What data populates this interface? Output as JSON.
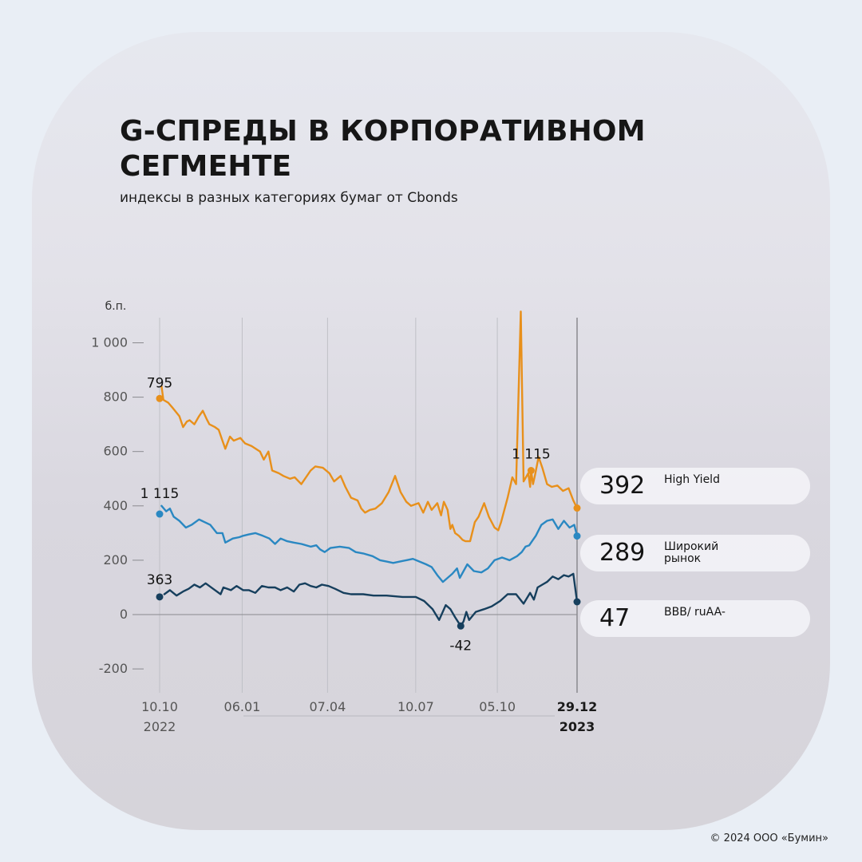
{
  "title": "G-СПРЕДЫ В КОРПОРАТИВНОМ СЕГМЕНТЕ",
  "subtitle": "индексы в разных категориях бумаг от Cbonds",
  "copyright": "© 2024 ООО «Бумин»",
  "colors": {
    "high_yield": "#e8901b",
    "broad_market": "#2a88c2",
    "bbb": "#163f5d",
    "axis": "#5a5a5a",
    "grid": "#bfc0c6"
  },
  "chart_data": {
    "type": "line",
    "title": "G-СПРЕДЫ В КОРПОРАТИВНОМ СЕГМЕНТЕ",
    "subtitle": "индексы в разных категориях бумаг от Cbonds",
    "ylabel": "б.п.",
    "ylim": [
      -200,
      1100
    ],
    "yticks": [
      1000,
      800,
      600,
      400,
      200,
      0,
      -200
    ],
    "ytick_labels": [
      "1 000",
      "800",
      "600",
      "400",
      "200",
      "0",
      "-200"
    ],
    "xticks": [
      {
        "x": "2022-10-10",
        "label": "10.10",
        "sub": "2022"
      },
      {
        "x": "2023-01-06",
        "label": "06.01",
        "sub": ""
      },
      {
        "x": "2023-04-07",
        "label": "07.04",
        "sub": ""
      },
      {
        "x": "2023-07-10",
        "label": "10.07",
        "sub": ""
      },
      {
        "x": "2023-10-05",
        "label": "05.10",
        "sub": ""
      },
      {
        "x": "2023-12-29",
        "label": "29.12",
        "sub": "2023"
      }
    ],
    "series": [
      {
        "name": "High Yield",
        "key": "high_yield",
        "x": [
          "2022-10-10",
          "2022-10-12",
          "2022-10-14",
          "2022-10-19",
          "2022-10-24",
          "2022-10-31",
          "2022-11-04",
          "2022-11-08",
          "2022-11-11",
          "2022-11-16",
          "2022-11-21",
          "2022-11-25",
          "2022-11-29",
          "2022-12-02",
          "2022-12-08",
          "2022-12-12",
          "2022-12-16",
          "2022-12-19",
          "2022-12-24",
          "2022-12-28",
          "2023-01-04",
          "2023-01-09",
          "2023-01-16",
          "2023-01-25",
          "2023-01-29",
          "2023-02-03",
          "2023-02-07",
          "2023-02-14",
          "2023-02-19",
          "2023-02-26",
          "2023-03-03",
          "2023-03-10",
          "2023-03-20",
          "2023-03-25",
          "2023-04-02",
          "2023-04-09",
          "2023-04-14",
          "2023-04-21",
          "2023-04-26",
          "2023-05-02",
          "2023-05-09",
          "2023-05-13",
          "2023-05-17",
          "2023-05-22",
          "2023-05-28",
          "2023-06-04",
          "2023-06-11",
          "2023-06-18",
          "2023-06-24",
          "2023-06-30",
          "2023-07-05",
          "2023-07-13",
          "2023-07-18",
          "2023-07-23",
          "2023-07-27",
          "2023-08-02",
          "2023-08-06",
          "2023-08-09",
          "2023-08-11",
          "2023-08-13",
          "2023-08-16",
          "2023-08-18",
          "2023-08-21",
          "2023-08-25",
          "2023-08-29",
          "2023-09-01",
          "2023-09-06",
          "2023-09-11",
          "2023-09-15",
          "2023-09-21",
          "2023-09-26",
          "2023-10-02",
          "2023-10-06",
          "2023-10-09",
          "2023-10-16",
          "2023-10-21",
          "2023-10-25",
          "2023-10-30",
          "2023-11-02",
          "2023-11-07",
          "2023-11-09",
          "2023-11-10",
          "2023-11-12",
          "2023-11-14",
          "2023-11-18",
          "2023-11-22",
          "2023-11-27",
          "2023-12-02",
          "2023-12-08",
          "2023-12-14",
          "2023-12-20",
          "2023-12-25",
          "2023-12-29"
        ],
        "y": [
          795,
          840,
          790,
          780,
          760,
          730,
          690,
          710,
          715,
          700,
          730,
          750,
          720,
          700,
          690,
          680,
          640,
          610,
          655,
          640,
          650,
          630,
          620,
          600,
          570,
          600,
          530,
          520,
          510,
          500,
          505,
          480,
          530,
          545,
          540,
          520,
          490,
          510,
          470,
          430,
          420,
          390,
          375,
          385,
          390,
          410,
          450,
          510,
          450,
          415,
          400,
          410,
          375,
          415,
          385,
          410,
          365,
          415,
          400,
          385,
          315,
          330,
          300,
          290,
          275,
          270,
          270,
          340,
          360,
          410,
          360,
          320,
          310,
          340,
          430,
          505,
          480,
          1115,
          490,
          520,
          470,
          530,
          480,
          510,
          580,
          540,
          480,
          470,
          475,
          455,
          465,
          420,
          392
        ]
      },
      {
        "name": "Широкий рынок",
        "key": "broad_market",
        "x": [
          "2022-10-10",
          "2022-10-12",
          "2022-10-17",
          "2022-10-21",
          "2022-10-25",
          "2022-10-31",
          "2022-11-07",
          "2022-11-13",
          "2022-11-21",
          "2022-11-27",
          "2022-12-03",
          "2022-12-10",
          "2022-12-16",
          "2022-12-19",
          "2022-12-27",
          "2023-01-03",
          "2023-01-07",
          "2023-01-13",
          "2023-01-20",
          "2023-01-28",
          "2023-02-04",
          "2023-02-10",
          "2023-02-16",
          "2023-02-23",
          "2023-03-02",
          "2023-03-10",
          "2023-03-20",
          "2023-03-26",
          "2023-03-30",
          "2023-04-04",
          "2023-04-10",
          "2023-04-20",
          "2023-04-30",
          "2023-05-07",
          "2023-05-15",
          "2023-05-25",
          "2023-06-02",
          "2023-06-09",
          "2023-06-16",
          "2023-06-23",
          "2023-06-30",
          "2023-07-07",
          "2023-07-14",
          "2023-07-21",
          "2023-07-27",
          "2023-08-02",
          "2023-08-08",
          "2023-08-13",
          "2023-08-18",
          "2023-08-23",
          "2023-08-26",
          "2023-09-03",
          "2023-09-10",
          "2023-09-18",
          "2023-09-25",
          "2023-10-02",
          "2023-10-10",
          "2023-10-18",
          "2023-10-26",
          "2023-10-31",
          "2023-11-04",
          "2023-11-08",
          "2023-11-11",
          "2023-11-15",
          "2023-11-21",
          "2023-11-27",
          "2023-12-03",
          "2023-12-09",
          "2023-12-15",
          "2023-12-21",
          "2023-12-26",
          "2023-12-29"
        ],
        "y": [
          1115,
          400,
          380,
          390,
          360,
          345,
          320,
          330,
          350,
          340,
          330,
          300,
          300,
          265,
          280,
          285,
          290,
          295,
          300,
          290,
          280,
          260,
          280,
          270,
          265,
          260,
          250,
          255,
          240,
          230,
          245,
          250,
          245,
          230,
          225,
          215,
          200,
          195,
          190,
          195,
          200,
          205,
          195,
          185,
          175,
          145,
          120,
          135,
          150,
          170,
          135,
          185,
          160,
          155,
          170,
          200,
          210,
          200,
          215,
          230,
          250,
          255,
          270,
          290,
          330,
          345,
          350,
          315,
          345,
          320,
          330,
          289
        ]
      },
      {
        "name": "BBB/ruAA-",
        "key": "bbb",
        "x": [
          "2022-10-10",
          "2022-10-15",
          "2022-10-21",
          "2022-10-28",
          "2022-11-04",
          "2022-11-10",
          "2022-11-16",
          "2022-11-22",
          "2022-11-28",
          "2022-12-06",
          "2022-12-14",
          "2022-12-17",
          "2022-12-25",
          "2022-12-31",
          "2023-01-07",
          "2023-01-13",
          "2023-01-20",
          "2023-01-27",
          "2023-02-03",
          "2023-02-10",
          "2023-02-16",
          "2023-02-23",
          "2023-03-02",
          "2023-03-08",
          "2023-03-14",
          "2023-03-20",
          "2023-03-26",
          "2023-04-01",
          "2023-04-08",
          "2023-04-15",
          "2023-04-24",
          "2023-05-02",
          "2023-05-08",
          "2023-05-15",
          "2023-05-26",
          "2023-06-09",
          "2023-06-26",
          "2023-07-10",
          "2023-07-19",
          "2023-07-28",
          "2023-08-04",
          "2023-08-11",
          "2023-08-16",
          "2023-08-21",
          "2023-08-27",
          "2023-08-30",
          "2023-09-02",
          "2023-09-05",
          "2023-09-12",
          "2023-09-21",
          "2023-09-29",
          "2023-10-08",
          "2023-10-16",
          "2023-10-25",
          "2023-11-02",
          "2023-11-09",
          "2023-11-13",
          "2023-11-17",
          "2023-11-22",
          "2023-11-27",
          "2023-12-03",
          "2023-12-09",
          "2023-12-15",
          "2023-12-20",
          "2023-12-25",
          "2023-12-29"
        ],
        "y": [
          363,
          75,
          90,
          70,
          85,
          95,
          110,
          100,
          115,
          95,
          75,
          100,
          90,
          105,
          90,
          90,
          80,
          105,
          100,
          100,
          90,
          100,
          85,
          110,
          115,
          105,
          100,
          110,
          105,
          95,
          80,
          75,
          75,
          75,
          70,
          70,
          65,
          65,
          50,
          20,
          -20,
          35,
          20,
          -10,
          -42,
          -25,
          10,
          -20,
          10,
          20,
          30,
          50,
          75,
          75,
          40,
          80,
          55,
          100,
          110,
          120,
          140,
          130,
          145,
          140,
          150,
          47
        ]
      }
    ],
    "annotations": [
      {
        "series": "high_yield",
        "x": "2022-10-10",
        "label": "795"
      },
      {
        "series": "high_yield",
        "x": "2023-11-10",
        "label": "1 115"
      },
      {
        "series": "broad_market",
        "x": "2022-10-10",
        "label": "1 115"
      },
      {
        "series": "bbb",
        "x": "2022-10-10",
        "label": "363"
      },
      {
        "series": "bbb",
        "x": "2023-08-27",
        "label": "-42"
      }
    ],
    "grid": true,
    "legend": "right"
  },
  "summary": [
    {
      "key": "high_yield",
      "value": "392",
      "label": "High Yield"
    },
    {
      "key": "broad_market",
      "value": "289",
      "label": "Широкий рынок"
    },
    {
      "key": "bbb",
      "value": "47",
      "label": "BBB/ ruAA-"
    }
  ]
}
